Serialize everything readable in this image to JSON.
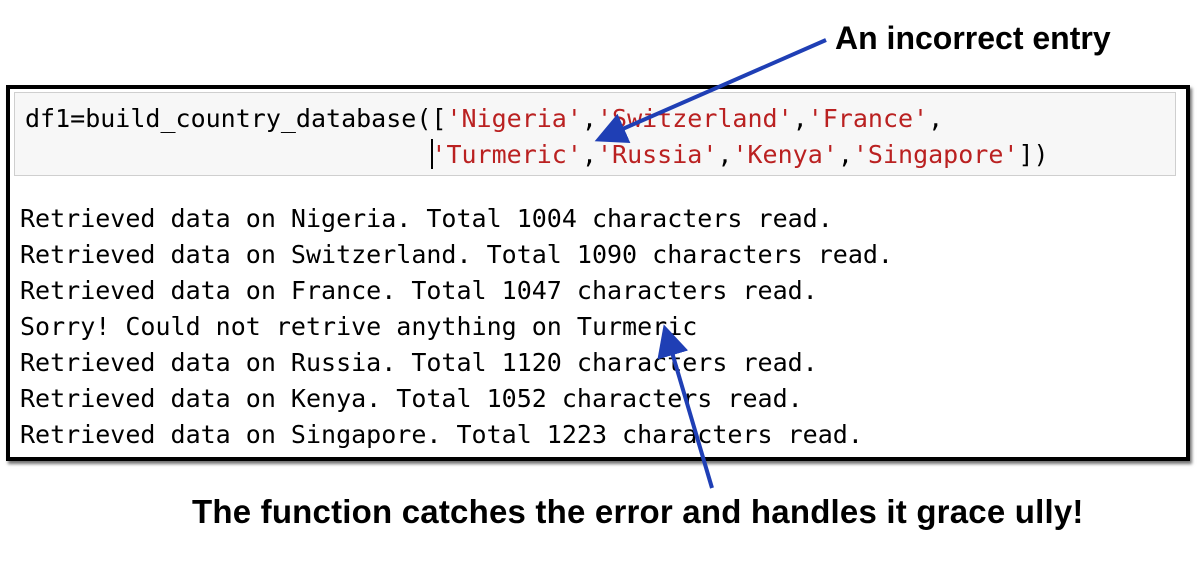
{
  "annotations": {
    "top": "An incorrect entry",
    "bottom": "The  function catches the error and handles it grace ully!"
  },
  "code": {
    "line1": {
      "prefix": "df1=build_country_database([",
      "items": [
        "'Nigeria'",
        "'Switzerland'",
        "'France'"
      ],
      "trailing": ","
    },
    "line2": {
      "indent": "                           ",
      "items": [
        "'Turmeric'",
        "'Russia'",
        "'Kenya'",
        "'Singapore'"
      ],
      "suffix": "])"
    }
  },
  "output": [
    "Retrieved data on Nigeria. Total 1004 characters read.",
    "Retrieved data on Switzerland. Total 1090 characters read.",
    "Retrieved data on France. Total 1047 characters read.",
    "Sorry! Could not retrive anything on Turmeric",
    "Retrieved data on Russia. Total 1120 characters read.",
    "Retrieved data on Kenya. Total 1052 characters read.",
    "Retrieved data on Singapore. Total 1223 characters read."
  ],
  "colors": {
    "string": "#ba2121",
    "arrow": "#1f3fb5",
    "cell_border": "#000000",
    "input_background": "#f7f7f7"
  }
}
